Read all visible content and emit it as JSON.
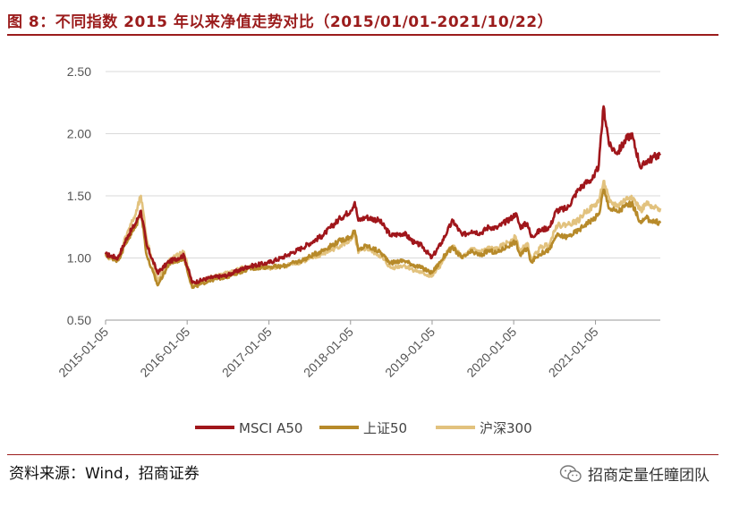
{
  "header": {
    "title": "图 8：不同指数 2015 年以来净值走势对比（2015/01/01-2021/10/22）"
  },
  "footer": {
    "source": "资料来源：Wind，招商证券",
    "watermark": "招商定量任瞳团队",
    "watermark_icon": "wechat-icon"
  },
  "chart_data": {
    "type": "line",
    "title": "",
    "xlabel": "",
    "ylabel": "",
    "ylim": [
      0.5,
      2.5
    ],
    "yticks": [
      "0.50",
      "1.00",
      "1.50",
      "2.00",
      "2.50"
    ],
    "xticks": [
      "2015-01-05",
      "2016-01-05",
      "2017-01-05",
      "2018-01-05",
      "2019-01-05",
      "2020-01-05",
      "2021-01-05"
    ],
    "grid": "horizontal",
    "legend_position": "bottom",
    "series": [
      {
        "name": "MSCI A50",
        "color": "#a0161b",
        "x": [
          "2015-01-05",
          "2015-03-01",
          "2015-04-15",
          "2015-05-20",
          "2015-06-12",
          "2015-07-08",
          "2015-08-26",
          "2015-10-15",
          "2015-12-22",
          "2016-01-28",
          "2016-04-15",
          "2016-07-01",
          "2016-10-01",
          "2016-12-30",
          "2017-03-01",
          "2017-06-01",
          "2017-09-01",
          "2017-11-20",
          "2018-01-05",
          "2018-01-24",
          "2018-02-09",
          "2018-03-15",
          "2018-05-15",
          "2018-07-05",
          "2018-09-01",
          "2018-10-19",
          "2018-11-20",
          "2019-01-03",
          "2019-02-15",
          "2019-03-15",
          "2019-04-08",
          "2019-05-20",
          "2019-07-01",
          "2019-08-10",
          "2019-09-15",
          "2019-10-20",
          "2019-12-31",
          "2020-01-14",
          "2020-02-03",
          "2020-03-06",
          "2020-03-23",
          "2020-05-01",
          "2020-06-15",
          "2020-07-13",
          "2020-09-01",
          "2020-10-20",
          "2020-11-20",
          "2020-12-31",
          "2021-01-20",
          "2021-02-10",
          "2021-03-09",
          "2021-04-15",
          "2021-05-20",
          "2021-06-15",
          "2021-07-28",
          "2021-08-20",
          "2021-09-15",
          "2021-10-22"
        ],
        "values": [
          1.03,
          1.0,
          1.18,
          1.28,
          1.38,
          1.1,
          0.88,
          0.97,
          1.02,
          0.8,
          0.84,
          0.86,
          0.93,
          0.96,
          1.0,
          1.08,
          1.18,
          1.32,
          1.38,
          1.45,
          1.3,
          1.33,
          1.3,
          1.18,
          1.2,
          1.12,
          1.1,
          1.0,
          1.12,
          1.22,
          1.3,
          1.18,
          1.22,
          1.2,
          1.25,
          1.24,
          1.33,
          1.36,
          1.25,
          1.28,
          1.17,
          1.22,
          1.25,
          1.38,
          1.4,
          1.55,
          1.6,
          1.65,
          1.75,
          2.22,
          1.9,
          1.85,
          1.95,
          2.0,
          1.72,
          1.78,
          1.8,
          1.84
        ]
      },
      {
        "name": "上证50",
        "color": "#b78a2a",
        "x": [
          "2015-01-05",
          "2015-03-01",
          "2015-04-15",
          "2015-05-20",
          "2015-06-12",
          "2015-07-08",
          "2015-08-26",
          "2015-10-15",
          "2015-12-22",
          "2016-01-28",
          "2016-04-15",
          "2016-07-01",
          "2016-10-01",
          "2016-12-30",
          "2017-03-01",
          "2017-06-01",
          "2017-09-01",
          "2017-11-20",
          "2018-01-05",
          "2018-01-24",
          "2018-02-09",
          "2018-03-15",
          "2018-05-15",
          "2018-07-05",
          "2018-09-01",
          "2018-10-19",
          "2018-11-20",
          "2019-01-03",
          "2019-02-15",
          "2019-03-15",
          "2019-04-08",
          "2019-05-20",
          "2019-07-01",
          "2019-08-10",
          "2019-09-15",
          "2019-10-20",
          "2019-12-31",
          "2020-01-14",
          "2020-02-03",
          "2020-03-06",
          "2020-03-23",
          "2020-05-01",
          "2020-06-15",
          "2020-07-13",
          "2020-09-01",
          "2020-10-20",
          "2020-11-20",
          "2020-12-31",
          "2021-01-20",
          "2021-02-10",
          "2021-03-09",
          "2021-04-15",
          "2021-05-20",
          "2021-06-15",
          "2021-07-28",
          "2021-08-20",
          "2021-09-15",
          "2021-10-22"
        ],
        "values": [
          1.02,
          0.98,
          1.15,
          1.25,
          1.38,
          1.02,
          0.78,
          0.95,
          1.0,
          0.76,
          0.82,
          0.85,
          0.91,
          0.93,
          0.93,
          0.98,
          1.06,
          1.14,
          1.17,
          1.22,
          1.06,
          1.1,
          1.05,
          0.96,
          0.98,
          0.94,
          0.92,
          0.88,
          0.98,
          1.05,
          1.08,
          1.0,
          1.05,
          1.02,
          1.06,
          1.04,
          1.12,
          1.13,
          1.02,
          1.08,
          0.97,
          1.03,
          1.07,
          1.18,
          1.17,
          1.22,
          1.27,
          1.32,
          1.35,
          1.55,
          1.4,
          1.37,
          1.42,
          1.44,
          1.28,
          1.32,
          1.3,
          1.28
        ]
      },
      {
        "name": "沪深300",
        "color": "#e2c27e",
        "x": [
          "2015-01-05",
          "2015-03-01",
          "2015-04-15",
          "2015-05-20",
          "2015-06-12",
          "2015-07-08",
          "2015-08-26",
          "2015-10-15",
          "2015-12-22",
          "2016-01-28",
          "2016-04-15",
          "2016-07-01",
          "2016-10-01",
          "2016-12-30",
          "2017-03-01",
          "2017-06-01",
          "2017-09-01",
          "2017-11-20",
          "2018-01-05",
          "2018-01-24",
          "2018-02-09",
          "2018-03-15",
          "2018-05-15",
          "2018-07-05",
          "2018-09-01",
          "2018-10-19",
          "2018-11-20",
          "2019-01-03",
          "2019-02-15",
          "2019-03-15",
          "2019-04-08",
          "2019-05-20",
          "2019-07-01",
          "2019-08-10",
          "2019-09-15",
          "2019-10-20",
          "2019-12-31",
          "2020-01-14",
          "2020-02-03",
          "2020-03-06",
          "2020-03-23",
          "2020-05-01",
          "2020-06-15",
          "2020-07-13",
          "2020-09-01",
          "2020-10-20",
          "2020-11-20",
          "2020-12-31",
          "2021-01-20",
          "2021-02-10",
          "2021-03-09",
          "2021-04-15",
          "2021-05-20",
          "2021-06-15",
          "2021-07-28",
          "2021-08-20",
          "2021-09-15",
          "2021-10-22"
        ],
        "values": [
          1.01,
          0.99,
          1.22,
          1.35,
          1.5,
          1.15,
          0.82,
          0.98,
          1.05,
          0.78,
          0.84,
          0.88,
          0.93,
          0.92,
          0.93,
          0.97,
          1.03,
          1.1,
          1.14,
          1.18,
          1.04,
          1.08,
          1.02,
          0.92,
          0.94,
          0.9,
          0.88,
          0.85,
          0.95,
          1.05,
          1.1,
          1.0,
          1.07,
          1.05,
          1.08,
          1.07,
          1.15,
          1.17,
          1.05,
          1.12,
          0.98,
          1.08,
          1.12,
          1.26,
          1.27,
          1.3,
          1.37,
          1.42,
          1.46,
          1.62,
          1.45,
          1.42,
          1.47,
          1.5,
          1.38,
          1.44,
          1.4,
          1.4
        ]
      }
    ]
  }
}
